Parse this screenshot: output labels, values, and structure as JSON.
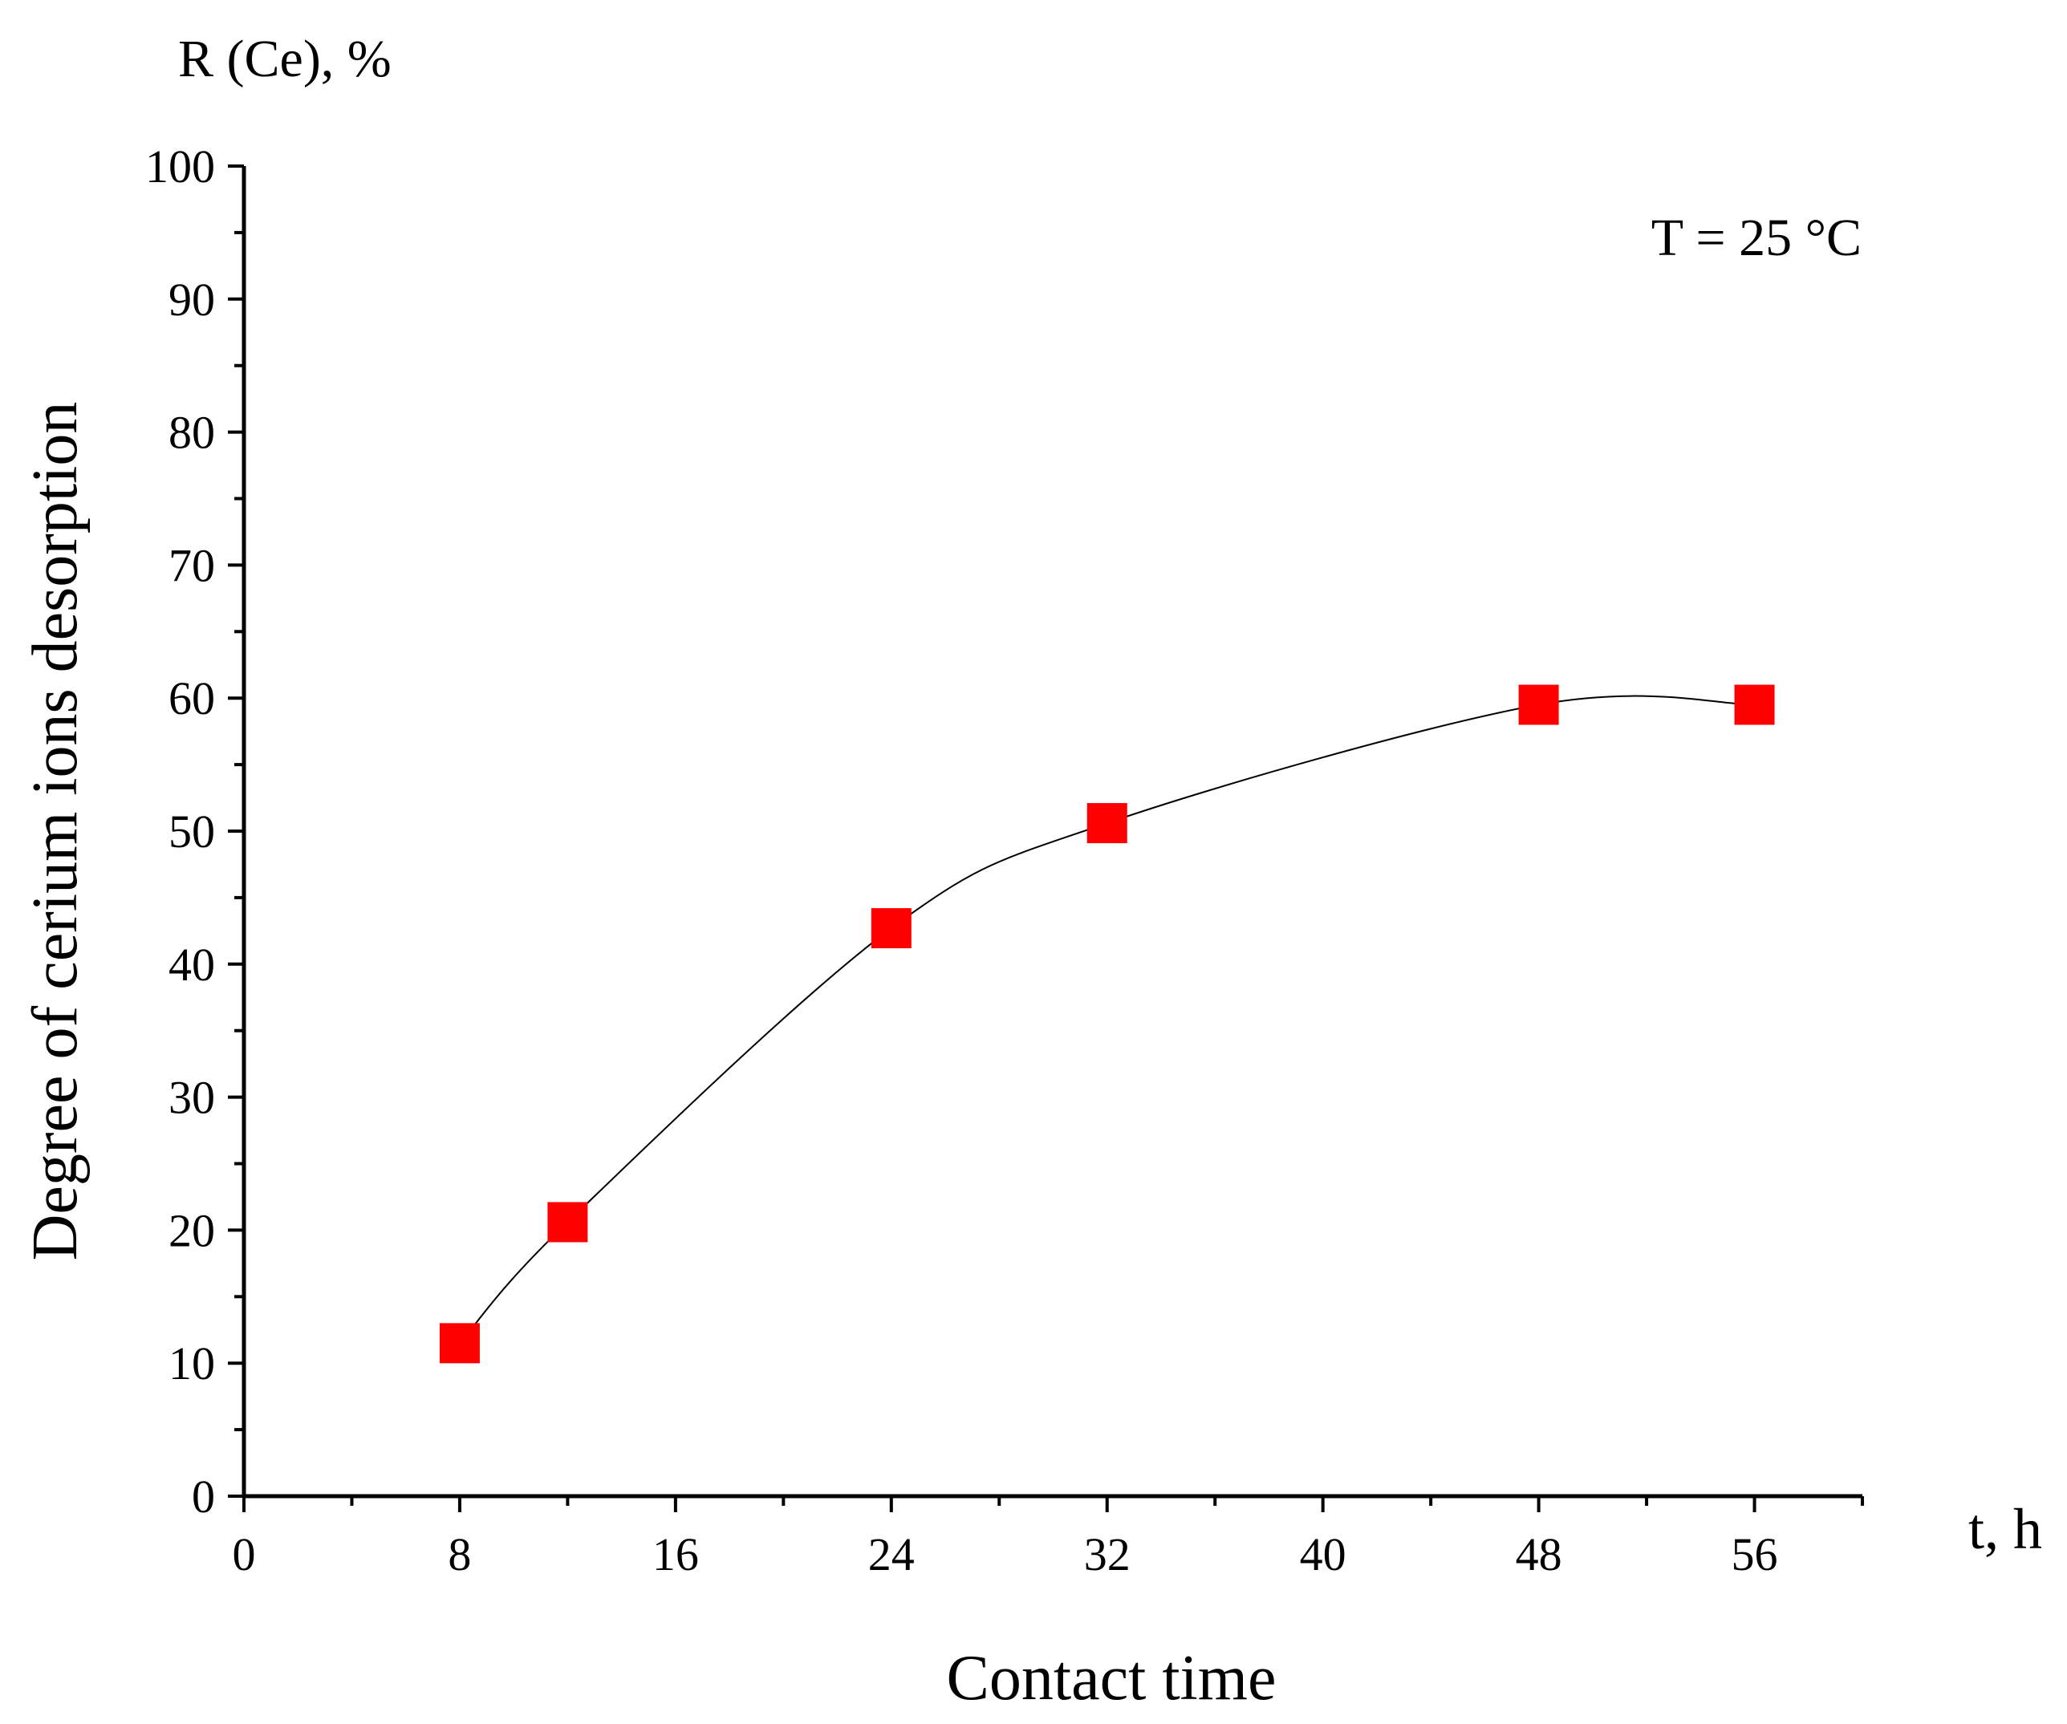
{
  "chart_data": {
    "type": "scatter",
    "title": "R (Ce), %",
    "y_label": "Degree of cerium ions desorption",
    "x_label": "Contact time",
    "x_unit": "t, h",
    "annotation": "T = 25 °C",
    "x": [
      8,
      12,
      24,
      32,
      48,
      56
    ],
    "series": [
      {
        "color": "#ff0000",
        "values": [
          11.5,
          20.6,
          42.7,
          50.6,
          59.5,
          59.5
        ]
      }
    ],
    "line_color": "#000000",
    "xlim": [
      0,
      60
    ],
    "ylim": [
      0,
      100
    ],
    "xticks": [
      0,
      8,
      16,
      24,
      32,
      40,
      48,
      56
    ],
    "yticks": [
      0,
      10,
      20,
      30,
      40,
      50,
      60,
      70,
      80,
      90,
      100
    ],
    "xminorticks": [
      4,
      12,
      20,
      28,
      36,
      44,
      52,
      60
    ],
    "yminorticks": [
      5,
      15,
      25,
      35,
      45,
      55,
      65,
      75,
      85,
      95
    ]
  }
}
